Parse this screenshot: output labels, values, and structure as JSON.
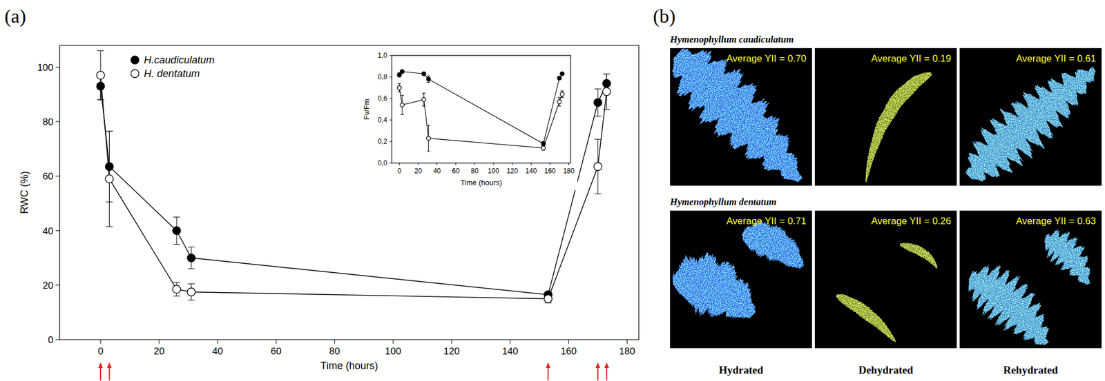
{
  "figure": {
    "panel_labels": [
      "(a)",
      "(b)"
    ]
  },
  "chart_data": [
    {
      "type": "line",
      "x_label": "Time (hours)",
      "y_label": "RWC (%)",
      "x": [
        0,
        3,
        26,
        31,
        153,
        170,
        173
      ],
      "xlim": [
        -14,
        184
      ],
      "xticks": [
        0,
        20,
        40,
        60,
        80,
        100,
        120,
        140,
        160,
        180
      ],
      "ylim": [
        0,
        108
      ],
      "yticks": [
        0,
        20,
        40,
        60,
        80,
        100
      ],
      "grid": false,
      "legend": "upper left",
      "series": [
        {
          "name": "H.caudiculatum",
          "color": "#000000",
          "marker": "filled",
          "values": [
            93,
            63.5,
            40,
            30,
            16.5,
            87,
            94
          ],
          "errors": [
            5,
            13,
            5,
            4,
            1,
            5,
            3.5
          ]
        },
        {
          "name": "H. dentatum",
          "color": "#000000",
          "marker": "open",
          "values": [
            97,
            59,
            18.5,
            17.5,
            15,
            63.5,
            91
          ],
          "errors": [
            9,
            17.5,
            2.5,
            3,
            1.5,
            10,
            6.5
          ]
        }
      ],
      "annotations": {
        "arrows": [
          0,
          3,
          153,
          170,
          173
        ],
        "color": "#e3261f"
      }
    },
    {
      "type": "line",
      "x_label": "Time (hours)",
      "y_label": "Fv/Fm",
      "x": [
        0,
        3,
        26,
        31,
        153,
        170,
        173
      ],
      "xlim": [
        -8,
        182
      ],
      "xticks": [
        0,
        20,
        40,
        60,
        80,
        100,
        120,
        140,
        160,
        180
      ],
      "ylim": [
        0,
        1
      ],
      "yticks": [
        {
          "value": 0,
          "label": "0,0"
        },
        {
          "value": 0.2,
          "label": "0,2"
        },
        {
          "value": 0.4,
          "label": "0,4"
        },
        {
          "value": 0.6,
          "label": "0,6"
        },
        {
          "value": 0.8,
          "label": "0,8"
        },
        {
          "value": 1,
          "label": "1,0"
        }
      ],
      "grid": false,
      "series": [
        {
          "color": "#000000",
          "marker": "filled",
          "values": [
            0.82,
            0.85,
            0.83,
            0.78,
            0.18,
            0.79,
            0.83
          ],
          "errors": [
            0.02,
            0.01,
            0.01,
            0.03,
            0.02,
            0.01,
            0.01
          ]
        },
        {
          "color": "#000000",
          "marker": "open",
          "values": [
            0.7,
            0.54,
            0.59,
            0.23,
            0.14,
            0.57,
            0.64
          ],
          "errors": [
            0.04,
            0.09,
            0.06,
            0.12,
            0.02,
            0.04,
            0.03
          ]
        }
      ]
    }
  ],
  "image_panel": {
    "rows": [
      {
        "species": "Hymenophyllum caudiculatum",
        "labels": [
          "Average YII = 0.70",
          "Average YII = 0.19",
          "Average YII = 0.61"
        ]
      },
      {
        "species": "Hymenophyllum dentatum",
        "labels": [
          "Average YII = 0.71",
          "Average YII = 0.26",
          "Average YII = 0.63"
        ]
      }
    ],
    "columns": [
      "Hydrated",
      "Dehydrated",
      "Rehydrated"
    ]
  }
}
